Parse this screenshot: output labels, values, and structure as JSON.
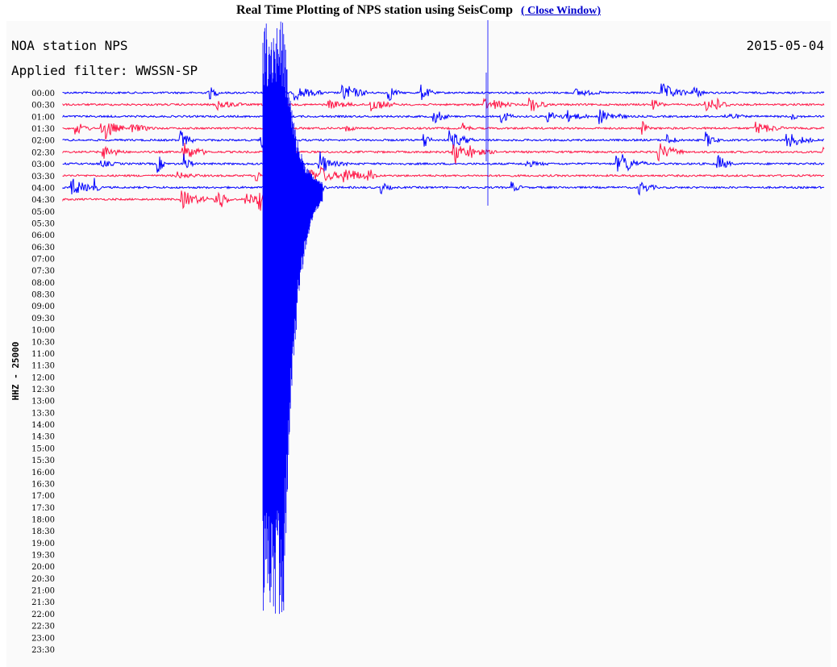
{
  "header": {
    "title": "Real Time Plotting of NPS station using SeisComp",
    "link": "( Close Window)"
  },
  "plot": {
    "station": "NOA station NPS",
    "date": "2015-05-04",
    "filter": "Applied filter: WWSSN-SP",
    "axis_label": "HHZ - 25000",
    "time_labels": [
      "00:00",
      "00:30",
      "01:00",
      "01:30",
      "02:00",
      "02:30",
      "03:00",
      "03:30",
      "04:00",
      "04:30",
      "05:00",
      "05:30",
      "06:00",
      "06:30",
      "07:00",
      "07:30",
      "08:00",
      "08:30",
      "09:00",
      "09:30",
      "10:00",
      "10:30",
      "11:00",
      "11:30",
      "12:00",
      "12:30",
      "13:00",
      "13:30",
      "14:00",
      "14:30",
      "15:00",
      "15:30",
      "16:00",
      "16:30",
      "17:00",
      "17:30",
      "18:00",
      "18:30",
      "19:00",
      "19:30",
      "20:00",
      "20:30",
      "21:00",
      "21:30",
      "22:00",
      "22:30",
      "23:00",
      "23:30"
    ]
  }
}
